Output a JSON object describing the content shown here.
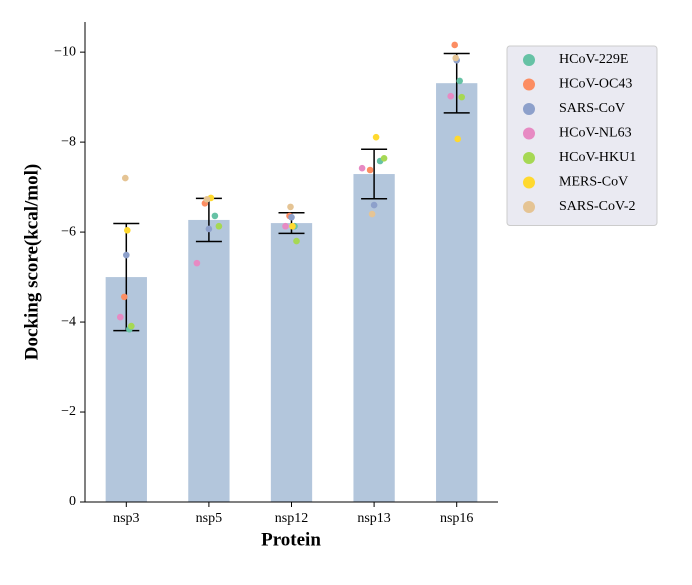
{
  "chart_data": {
    "type": "bar",
    "x_label": "Protein",
    "y_label": "Docking score(kcal/mol)",
    "categories": [
      "nsp3",
      "nsp5",
      "nsp12",
      "nsp13",
      "nsp16"
    ],
    "values": [
      -5.0,
      -6.27,
      -6.2,
      -7.29,
      -9.31
    ],
    "errors": [
      1.19,
      0.48,
      0.23,
      0.55,
      0.66
    ],
    "color": "#b3c6dc",
    "ylim": [
      0,
      -10.67
    ],
    "yticks": [
      0,
      {
        "value": -2,
        "label": "−2"
      },
      {
        "value": -4,
        "label": "−4"
      },
      {
        "value": -6,
        "label": "−6"
      },
      {
        "value": -8,
        "label": "−8"
      },
      {
        "value": -10,
        "label": "−10"
      }
    ],
    "legend": "upper right",
    "series": [
      {
        "name": "HCoV-229E",
        "color": "#66c2a5",
        "values": [
          -3.84,
          -6.36,
          -6.13,
          -7.58,
          -9.36
        ]
      },
      {
        "name": "HCoV-OC43",
        "color": "#fc8d62",
        "values": [
          -4.56,
          -6.64,
          -6.36,
          -7.38,
          -10.16
        ]
      },
      {
        "name": "SARS-CoV",
        "color": "#8da0cb",
        "values": [
          -5.49,
          -6.07,
          -6.33,
          -6.6,
          -9.82
        ]
      },
      {
        "name": "HCoV-NL63",
        "color": "#e78ac3",
        "values": [
          -4.11,
          -5.31,
          -6.13,
          -7.42,
          -9.02
        ]
      },
      {
        "name": "HCoV-HKU1",
        "color": "#a6d854",
        "values": [
          -3.91,
          -6.13,
          -5.8,
          -7.64,
          -9.0
        ]
      },
      {
        "name": "MERS-CoV",
        "color": "#ffd92f",
        "values": [
          -6.04,
          -6.76,
          -6.13,
          -8.11,
          -8.07
        ]
      },
      {
        "name": "SARS-CoV-2",
        "color": "#e5c494",
        "values": [
          -7.2,
          -6.73,
          -6.56,
          -6.4,
          -9.87
        ]
      }
    ]
  }
}
